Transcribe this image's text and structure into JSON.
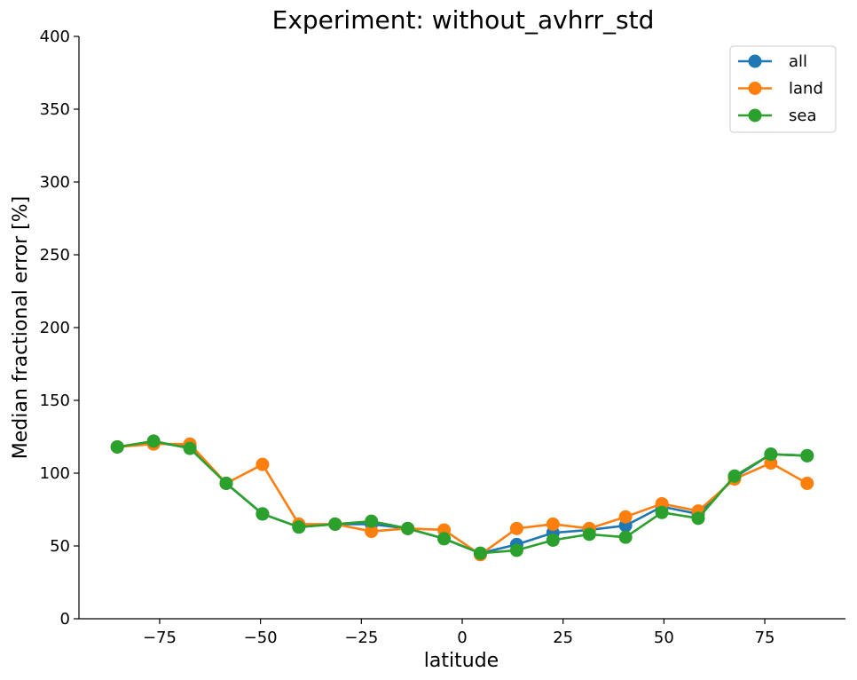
{
  "chart_data": {
    "type": "line",
    "title": "Experiment: without_avhrr_std",
    "xlabel": "latitude",
    "ylabel": "Median fractional error [%]",
    "xlim": [
      -95,
      95
    ],
    "ylim": [
      0,
      400
    ],
    "xticks": [
      -75,
      -50,
      -25,
      0,
      25,
      50,
      75
    ],
    "xtick_labels": [
      "−75",
      "−50",
      "−25",
      "0",
      "25",
      "50",
      "75"
    ],
    "yticks": [
      0,
      50,
      100,
      150,
      200,
      250,
      300,
      350,
      400
    ],
    "ytick_labels": [
      "0",
      "50",
      "100",
      "150",
      "200",
      "250",
      "300",
      "350",
      "400"
    ],
    "grid": false,
    "legend_position": "top-right",
    "x": [
      -85.5,
      -76.5,
      -67.5,
      -58.5,
      -49.5,
      -40.5,
      -31.5,
      -22.5,
      -13.5,
      -4.5,
      4.5,
      13.5,
      22.5,
      31.5,
      40.5,
      49.5,
      58.5,
      67.5,
      76.5,
      85.5
    ],
    "series": [
      {
        "name": "all",
        "color": "#1f77b4",
        "values": [
          118,
          121,
          118,
          93,
          72,
          63,
          65,
          65,
          62,
          55,
          45,
          51,
          59,
          61,
          64,
          77,
          72,
          97,
          113,
          112
        ]
      },
      {
        "name": "land",
        "color": "#ff7f0e",
        "values": [
          118,
          120,
          120,
          93,
          106,
          65,
          65,
          60,
          62,
          61,
          44,
          62,
          65,
          62,
          70,
          79,
          74,
          96,
          107,
          93
        ]
      },
      {
        "name": "sea",
        "color": "#2ca02c",
        "values": [
          118,
          122,
          117,
          93,
          72,
          63,
          65,
          67,
          62,
          55,
          45,
          47,
          54,
          58,
          56,
          73,
          69,
          98,
          113,
          112
        ]
      }
    ]
  }
}
